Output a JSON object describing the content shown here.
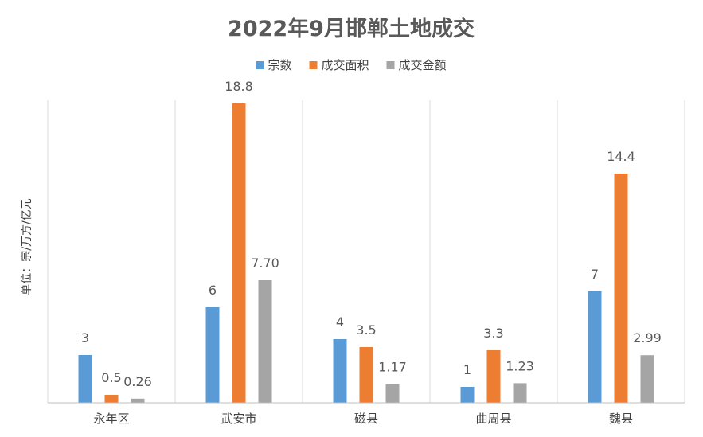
{
  "chart_data": {
    "type": "bar",
    "title": "2022年9月邯郸土地成交",
    "ylabel": "单位：宗/万方/亿元",
    "xlabel": "",
    "categories": [
      "永年区",
      "武安市",
      "磁县",
      "曲周县",
      "魏县"
    ],
    "series": [
      {
        "name": "宗数",
        "color": "#5B9BD5",
        "values": [
          3,
          6,
          4,
          1,
          7
        ],
        "labels": [
          "3",
          "6",
          "4",
          "1",
          "7"
        ]
      },
      {
        "name": "成交面积",
        "color": "#ED7D31",
        "values": [
          0.5,
          18.8,
          3.5,
          3.3,
          14.4
        ],
        "labels": [
          "0.5",
          "18.8",
          "3.5",
          "3.3",
          "14.4"
        ]
      },
      {
        "name": "成交金额",
        "color": "#A5A5A5",
        "values": [
          0.26,
          7.7,
          1.17,
          1.23,
          2.99
        ],
        "labels": [
          "0.26",
          "7.70",
          "1.17",
          "1.23",
          "2.99"
        ]
      }
    ],
    "ylim": [
      0,
      19
    ],
    "legend_position": "top",
    "grid": "vertical category separators"
  }
}
